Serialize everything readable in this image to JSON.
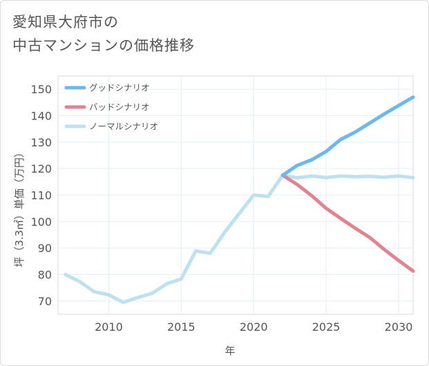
{
  "chart_data": {
    "type": "line",
    "title_line1": "愛知県大府市の",
    "title_line2": "中古マンションの価格推移",
    "xlabel": "年",
    "ylabel": "坪（3.3㎡）単価（万円）",
    "xlim": [
      2006.5,
      2031.0
    ],
    "ylim": [
      65,
      155
    ],
    "xticks": [
      2010,
      2015,
      2020,
      2025,
      2030
    ],
    "yticks": [
      70,
      80,
      90,
      100,
      110,
      120,
      130,
      140,
      150
    ],
    "grid": true,
    "legend_position": "top-left",
    "series": [
      {
        "name": "グッドシナリオ",
        "color": "#6cb8ee",
        "x": [
          2022,
          2023,
          2024,
          2025,
          2026,
          2027,
          2028,
          2029,
          2030,
          2031
        ],
        "y": [
          117.5,
          121.2,
          123.3,
          126.5,
          131.0,
          133.8,
          137.2,
          140.6,
          143.8,
          147.0
        ]
      },
      {
        "name": "バッドシナリオ",
        "color": "#e08590",
        "x": [
          2022,
          2023,
          2024,
          2025,
          2026,
          2027,
          2028,
          2029,
          2030,
          2031
        ],
        "y": [
          117.5,
          114.0,
          109.8,
          105.0,
          101.2,
          97.5,
          94.0,
          89.5,
          85.3,
          81.3
        ]
      },
      {
        "name": "ノーマルシナリオ",
        "color": "#bfe0ee",
        "x": [
          2007,
          2008,
          2009,
          2010,
          2011,
          2012,
          2013,
          2014,
          2015,
          2016,
          2017,
          2018,
          2019,
          2020,
          2021,
          2022,
          2023,
          2024,
          2025,
          2026,
          2027,
          2028,
          2029,
          2030,
          2031
        ],
        "y": [
          80.0,
          77.3,
          73.5,
          72.3,
          69.5,
          71.3,
          72.9,
          76.5,
          78.3,
          88.9,
          88.0,
          96.0,
          103.0,
          110.0,
          109.5,
          117.5,
          116.5,
          117.2,
          116.6,
          117.2,
          116.9,
          117.1,
          116.7,
          117.2,
          116.6
        ]
      }
    ]
  }
}
